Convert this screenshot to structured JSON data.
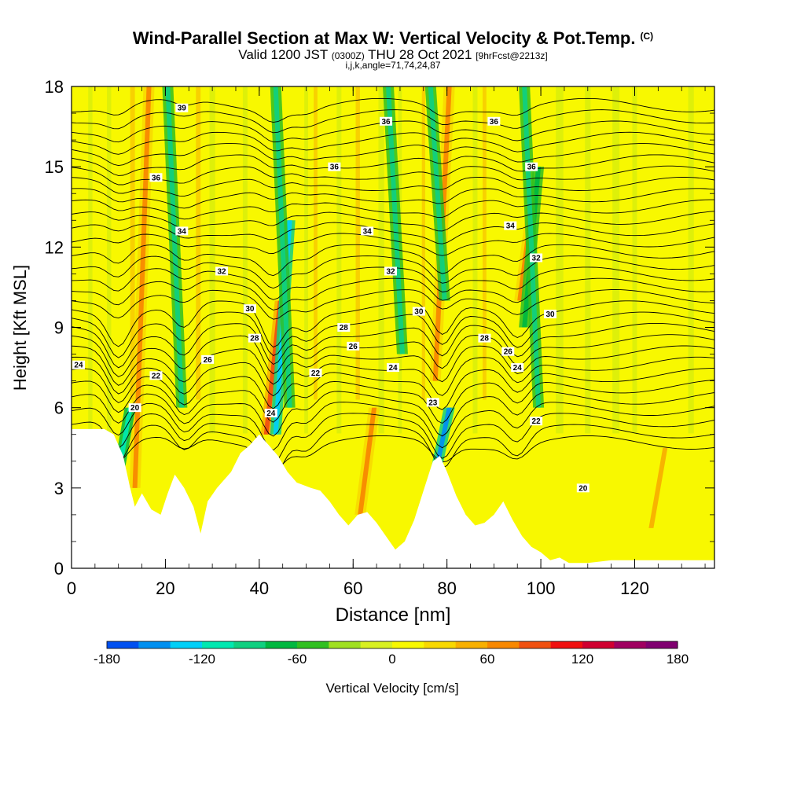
{
  "chart_data": {
    "type": "heatmap",
    "title": "Wind-Parallel Section at Max W: Vertical Velocity & Pot.Temp.",
    "title_mark": "(C)",
    "subtitle_parts": [
      "Valid 1200 JST",
      "(0300Z)",
      "THU 28 Oct 2021",
      "[9hrFcst@2213z]"
    ],
    "subtitle2": "i,j,k,angle=71,74,24,87",
    "xlabel": "Distance [nm]",
    "ylabel": "Height [Kft MSL]",
    "xlim": [
      0,
      137
    ],
    "ylim": [
      0,
      18
    ],
    "x_ticks": [
      "0",
      "20",
      "40",
      "60",
      "80",
      "100",
      "120"
    ],
    "y_ticks": [
      "0",
      "3",
      "6",
      "9",
      "12",
      "15",
      "18"
    ],
    "colorbar": {
      "label": "Vertical Velocity [cm/s]",
      "range": [
        -180,
        180
      ],
      "tick_labels": [
        "-180",
        "-120",
        "-60",
        "0",
        "60",
        "120",
        "180"
      ],
      "colors": [
        "#0000ff",
        "#0050f0",
        "#0090f0",
        "#00d0f8",
        "#00e8b0",
        "#10d080",
        "#00b840",
        "#30c020",
        "#a0e020",
        "#d8f020",
        "#f8f800",
        "#f8d800",
        "#f8b000",
        "#f88800",
        "#f05010",
        "#f01010",
        "#d00030",
        "#a00060",
        "#800070"
      ]
    },
    "contour_labels": [
      "39",
      "36",
      "34",
      "32",
      "30",
      "28",
      "26",
      "24",
      "22",
      "20",
      "23"
    ],
    "updrafts": [
      {
        "x": 15,
        "z_bottom": 3,
        "z_top": 18,
        "w": 80
      },
      {
        "x": 43,
        "z_bottom": 5,
        "z_top": 10,
        "w": 110
      },
      {
        "x": 63,
        "z_bottom": 2,
        "z_top": 6,
        "w": 80
      },
      {
        "x": 79,
        "z_bottom": 7,
        "z_top": 18,
        "w": 90
      },
      {
        "x": 97,
        "z_bottom": 10,
        "z_top": 14,
        "w": 80
      },
      {
        "x": 125,
        "z_bottom": 1.5,
        "z_top": 4.5,
        "w": 70
      }
    ],
    "downdrafts": [
      {
        "x": 11,
        "z_bottom": 3,
        "z_top": 6,
        "w": -100
      },
      {
        "x": 45,
        "z_bottom": 5,
        "z_top": 13,
        "w": -120
      },
      {
        "x": 79,
        "z_bottom": 3.5,
        "z_top": 6,
        "w": -140
      },
      {
        "x": 98,
        "z_bottom": 9,
        "z_top": 15,
        "w": -50
      }
    ]
  }
}
